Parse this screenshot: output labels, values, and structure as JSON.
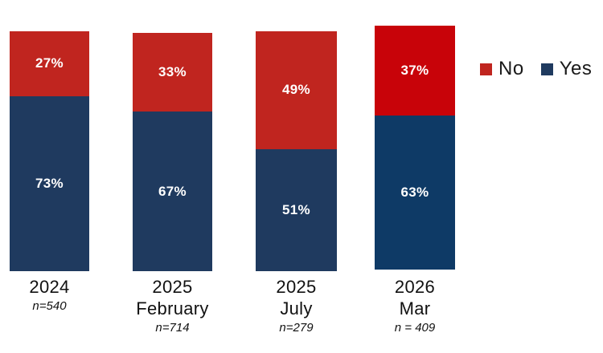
{
  "chart_data": {
    "type": "bar",
    "stacked": true,
    "orientation": "vertical",
    "title": "",
    "xlabel": "",
    "ylabel": "",
    "grid": false,
    "legend_position": "top-right",
    "value_suffix": "%",
    "categories": [
      "2024",
      "2025 February",
      "2025 July",
      "2026 Mar"
    ],
    "series": [
      {
        "name": "No",
        "values": [
          27,
          33,
          49,
          37
        ],
        "color": "#c0251f"
      },
      {
        "name": "Yes",
        "values": [
          73,
          67,
          51,
          63
        ],
        "color": "#1f3a5f"
      }
    ],
    "bars": [
      {
        "line1": "2024",
        "line2": "",
        "n_label": "n=540",
        "no_color": "#c0251f",
        "yes_color": "#1f3a5f"
      },
      {
        "line1": "2025",
        "line2": "February",
        "n_label": "n=714",
        "no_color": "#c0251f",
        "yes_color": "#1f3a5f"
      },
      {
        "line1": "2025",
        "line2": "July",
        "n_label": "n=279",
        "no_color": "#c0251f",
        "yes_color": "#1f3a5f"
      },
      {
        "line1": "2026",
        "line2": "Mar",
        "n_label": "n = 409",
        "no_color": "#c80309",
        "yes_color": "#0e3a66"
      }
    ]
  },
  "legend": {
    "items": [
      {
        "label": "No",
        "color": "#c0251f"
      },
      {
        "label": "Yes",
        "color": "#1f3a5f"
      }
    ]
  },
  "colors": {
    "background": "#ffffff",
    "axis_text": "#111111",
    "legend_text": "#1a1a1a",
    "bar_value_text": "#ffffff"
  }
}
